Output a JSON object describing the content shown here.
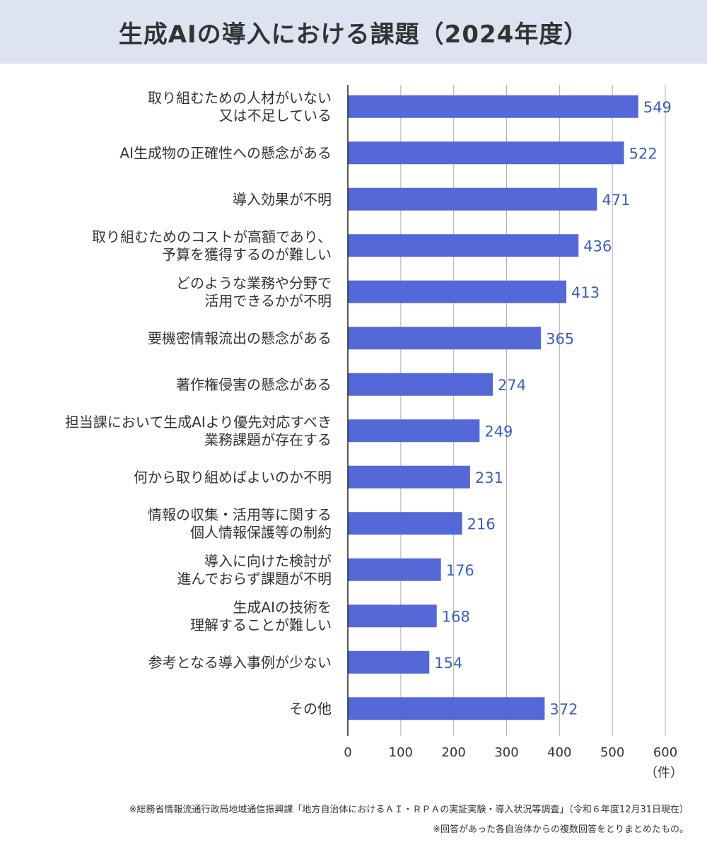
{
  "title": "生成AIの導入における課題（2024年度）",
  "unit_label": "（件）",
  "notes": [
    "※総務省情報流通行政局地域通信振興課「地方自治体におけるＡＩ・ＲＰＡの実証実験・導入状況等調査」（令和６年度12月31日現在）",
    "※回答があった各自治体からの複数回答をとりまとめたもの。"
  ],
  "colors": {
    "bar": "#5468d8",
    "value_text": "#3a5fbf",
    "title_bg": "#dde3f0",
    "grid": "#b0b0b0"
  },
  "chart_data": {
    "type": "bar",
    "orientation": "horizontal",
    "title": "生成AIの導入における課題（2024年度）",
    "xlabel": "（件）",
    "ylabel": "",
    "xlim": [
      0,
      600
    ],
    "xticks": [
      0,
      100,
      200,
      300,
      400,
      500,
      600
    ],
    "grid": true,
    "categories": [
      [
        "取り組むための人材がいない",
        "又は不足している"
      ],
      [
        "AI生成物の正確性への懸念がある"
      ],
      [
        "導入効果が不明"
      ],
      [
        "取り組むためのコストが高額であり、",
        "予算を獲得するのが難しい"
      ],
      [
        "どのような業務や分野で",
        "活用できるかが不明"
      ],
      [
        "要機密情報流出の懸念がある"
      ],
      [
        "著作権侵害の懸念がある"
      ],
      [
        "担当課において生成AIより優先対応すべき",
        "業務課題が存在する"
      ],
      [
        "何から取り組めばよいのか不明"
      ],
      [
        "情報の収集・活用等に関する",
        "個人情報保護等の制約"
      ],
      [
        "導入に向けた検討が",
        "進んでおらず課題が不明"
      ],
      [
        "生成AIの技術を",
        "理解することが難しい"
      ],
      [
        "参考となる導入事例が少ない"
      ],
      [
        "その他"
      ]
    ],
    "values": [
      549,
      522,
      471,
      436,
      413,
      365,
      274,
      249,
      231,
      216,
      176,
      168,
      154,
      372
    ]
  }
}
